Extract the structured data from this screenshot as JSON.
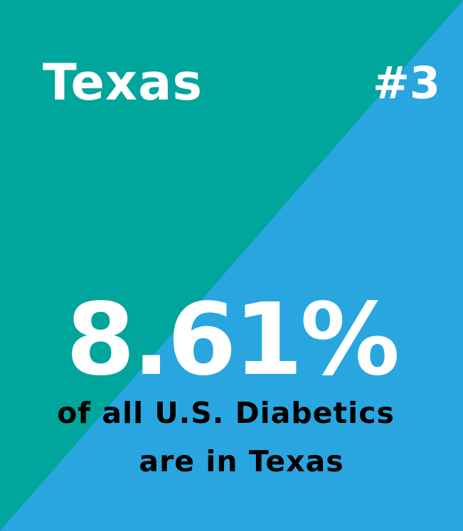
{
  "card": {
    "title": "Texas",
    "rank": "#3",
    "statistic": "8.61%",
    "caption_line1": "of all U.S. Diabetics",
    "caption_line2": "are in Texas"
  },
  "colors": {
    "teal": "#00a59b",
    "blue": "#29a6e0",
    "white_text": "#ffffff",
    "dark_text": "#000000"
  }
}
